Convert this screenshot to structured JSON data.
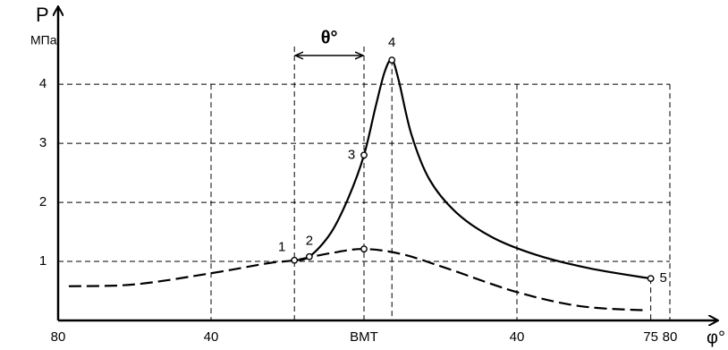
{
  "chart_data": {
    "type": "line",
    "y_label": "P",
    "y_unit": "МПа",
    "x_label": "φ°",
    "xlim": [
      -80,
      80
    ],
    "ylim": [
      0,
      5.2
    ],
    "xticks": [
      {
        "value": -80,
        "label": "80"
      },
      {
        "value": -40,
        "label": "40"
      },
      {
        "value": 0,
        "label": "ВМТ"
      },
      {
        "value": 40,
        "label": "40"
      },
      75,
      80
    ],
    "yticks": [
      1,
      2,
      3,
      4
    ],
    "grid": true,
    "series": [
      {
        "color": "#000000",
        "dash": false,
        "x": [
          -18.2,
          -14.3,
          -8.7,
          -4.0,
          0,
          3.0,
          5.4,
          7.3,
          9.1,
          12.4,
          17.1,
          24.1,
          33.5,
          45.1,
          59.2,
          75
        ],
        "values": [
          1.02,
          1.08,
          1.48,
          2.09,
          2.8,
          3.61,
          4.21,
          4.41,
          4.06,
          3.15,
          2.39,
          1.83,
          1.41,
          1.11,
          0.88,
          0.71
        ]
      },
      {
        "color": "#000000",
        "dash": true,
        "x": [
          -77.2,
          -60.1,
          -40,
          -25,
          -18.2,
          -8.7,
          0,
          10.1,
          21.8,
          40,
          56.8,
          74.2
        ],
        "values": [
          0.58,
          0.61,
          0.8,
          0.97,
          1.02,
          1.14,
          1.21,
          1.12,
          0.88,
          0.48,
          0.24,
          0.17
        ]
      }
    ],
    "points": [
      {
        "label": "1",
        "x": -18.2,
        "y": 1.02
      },
      {
        "label": "2",
        "x": -14.3,
        "y": 1.08
      },
      {
        "label": "3",
        "x": 0,
        "y": 2.8
      },
      {
        "label": "4",
        "x": 7.3,
        "y": 4.41
      },
      {
        "label": "5",
        "x": 75,
        "y": 0.71
      }
    ],
    "annotation": {
      "text": "θ°",
      "x": [
        -18.2,
        0
      ]
    }
  }
}
